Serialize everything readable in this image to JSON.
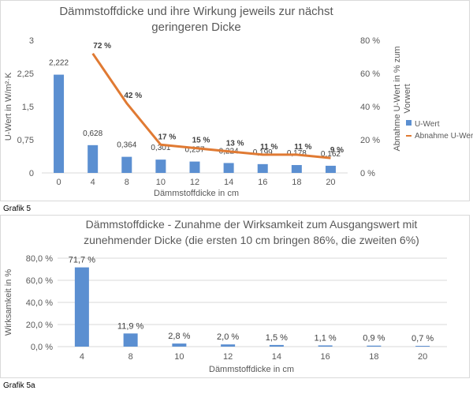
{
  "chart_data": [
    {
      "type": "bar+line",
      "title_lines": [
        "Dämmstoffdicke und ihre Wirkung jeweils zur nächst",
        "geringeren Dicke"
      ],
      "xlabel": "Dämmstoffdicke in cm",
      "ylabel": "U-Wert in W/m²·K",
      "y2label_lines": [
        "Abnahme U-Wert in % zum",
        "Vorwert"
      ],
      "categories": [
        "0",
        "4",
        "8",
        "10",
        "12",
        "14",
        "16",
        "18",
        "20"
      ],
      "y_ticks": [
        "0",
        "0,75",
        "1,5",
        "2,25",
        "3"
      ],
      "y2_ticks": [
        "0 %",
        "20 %",
        "40 %",
        "60 %",
        "80 %"
      ],
      "ylim": [
        0,
        3
      ],
      "y2lim": [
        0,
        80
      ],
      "series": [
        {
          "name": "U-Wert",
          "kind": "bar",
          "color": "#5b8fd1",
          "values": [
            2.222,
            0.628,
            0.364,
            0.301,
            0.257,
            0.224,
            0.199,
            0.178,
            0.162
          ],
          "labels": [
            "2,222",
            "0,628",
            "0,364",
            "0,301",
            "0,257",
            "0,224",
            "0,199",
            "0,178",
            "0,162"
          ]
        },
        {
          "name": "Abnahme U-Wert",
          "kind": "line",
          "color": "#e07a33",
          "values": [
            null,
            72,
            42,
            17,
            15,
            13,
            11,
            11,
            9
          ],
          "labels": [
            "",
            "72 %",
            "42 %",
            "17 %",
            "15 %",
            "13 %",
            "11 %",
            "11 %",
            "9 %"
          ]
        }
      ],
      "legend": [
        "U-Wert",
        "Abnahme U-Wert"
      ],
      "legend_position": "right"
    },
    {
      "type": "bar",
      "title_lines": [
        "Dämmstoffdicke - Zunahme der Wirksamkeit  zum Ausgangswert mit",
        "zunehmender Dicke (die ersten 10 cm bringen 86%, die zweiten 6%)"
      ],
      "xlabel": "Dämmstoffdicke in cm",
      "ylabel": "Wirksamkeit in %",
      "categories": [
        "4",
        "8",
        "10",
        "12",
        "14",
        "16",
        "18",
        "20"
      ],
      "y_ticks": [
        "0,0 %",
        "20,0 %",
        "40,0 %",
        "60,0 %",
        "80,0 %"
      ],
      "ylim": [
        0,
        80
      ],
      "series": [
        {
          "name": "",
          "kind": "bar",
          "color": "#5b8fd1",
          "values": [
            71.7,
            11.9,
            2.8,
            2.0,
            1.5,
            1.1,
            0.9,
            0.7
          ],
          "labels": [
            "71,7 %",
            "11,9 %",
            "2,8 %",
            "2,0 %",
            "1,5 %",
            "1,1 %",
            "0,9 %",
            "0,7 %"
          ]
        }
      ]
    }
  ],
  "captions": [
    "Grafik 5",
    "Grafik 5a"
  ]
}
